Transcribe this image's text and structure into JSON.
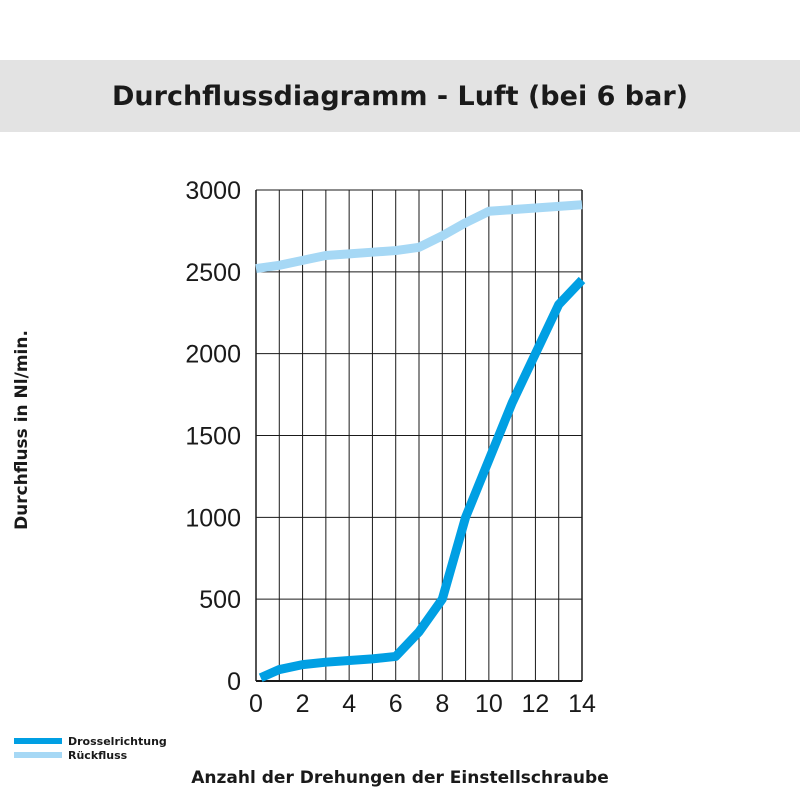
{
  "title": "Durchflussdiagramm - Luft (bei 6 bar)",
  "colors": {
    "header_bg": "#e3e3e3",
    "drossel": "#009fe3",
    "rueck": "#a6d8f5",
    "grid": "#1a1a1a"
  },
  "legend": [
    {
      "label": "Drosselrichtung",
      "color": "#009fe3"
    },
    {
      "label": "Rückfluss",
      "color": "#a6d8f5"
    }
  ],
  "chart_data": {
    "type": "line",
    "xlabel": "Anzahl der Drehungen der Einstellschraube",
    "ylabel": "Durchfluss in Nl/min.",
    "xlim": [
      0,
      14
    ],
    "ylim": [
      0,
      3000
    ],
    "x_ticks": [
      "0",
      "2",
      "4",
      "6",
      "8",
      "10",
      "12",
      "14"
    ],
    "y_ticks": [
      "0",
      "500",
      "1000",
      "1500",
      "2000",
      "2500",
      "3000"
    ],
    "grid": true,
    "legend_position": "bottom-left",
    "series": [
      {
        "name": "Drosselrichtung",
        "color": "#009fe3",
        "x": [
          0.2,
          1,
          2,
          3,
          4,
          5,
          6,
          7,
          8,
          9,
          10,
          11,
          12,
          13,
          14
        ],
        "y": [
          20,
          70,
          100,
          115,
          125,
          135,
          150,
          300,
          500,
          1000,
          1350,
          1700,
          2000,
          2300,
          2450
        ]
      },
      {
        "name": "Rückfluss",
        "color": "#a6d8f5",
        "x": [
          0,
          1,
          2,
          3,
          4,
          5,
          6,
          7,
          8,
          9,
          10,
          11,
          12,
          13,
          14
        ],
        "y": [
          2520,
          2540,
          2570,
          2600,
          2610,
          2620,
          2630,
          2650,
          2720,
          2800,
          2870,
          2880,
          2890,
          2900,
          2910
        ]
      }
    ]
  }
}
